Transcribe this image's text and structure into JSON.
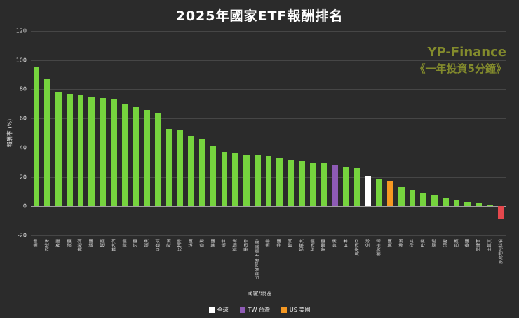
{
  "title": "2025年國家ETF報酬排名",
  "watermark": {
    "line1": "YP-Finance",
    "line2": "《一年投資5分鐘》",
    "color": "#9aa32d"
  },
  "chart_data": {
    "type": "bar",
    "title": "2025年國家ETF報酬排名",
    "xlabel": "國家/地區",
    "ylabel": "報酬率 (%)",
    "ylim": [
      -20,
      120
    ],
    "yticks": [
      120,
      100,
      80,
      60,
      40,
      20,
      0,
      -20
    ],
    "grid": "horizontal",
    "legend_position": "bottom-center",
    "background": "#2b2b2b",
    "default_color": "#76d43e",
    "legend": [
      {
        "label": "全球",
        "color": "#ffffff"
      },
      {
        "label": "TW 台灣",
        "color": "#8e5bb5"
      },
      {
        "label": "US 美國",
        "color": "#f59822"
      }
    ],
    "points": [
      {
        "label": "南韓",
        "value": 95
      },
      {
        "label": "西班牙",
        "value": 87
      },
      {
        "label": "希臘",
        "value": 78
      },
      {
        "label": "波蘭",
        "value": 77
      },
      {
        "label": "奧地利",
        "value": 76
      },
      {
        "label": "德國",
        "value": 75
      },
      {
        "label": "越南",
        "value": 74
      },
      {
        "label": "義大利",
        "value": 73
      },
      {
        "label": "荷蘭",
        "value": 70
      },
      {
        "label": "芬蘭",
        "value": 68
      },
      {
        "label": "瑞典",
        "value": 66
      },
      {
        "label": "以色列",
        "value": 64
      },
      {
        "label": "歐洲",
        "value": 53
      },
      {
        "label": "比利時",
        "value": 52
      },
      {
        "label": "法國",
        "value": 48
      },
      {
        "label": "香港",
        "value": 46
      },
      {
        "label": "英國",
        "value": 41
      },
      {
        "label": "瑞士",
        "value": 37
      },
      {
        "label": "新加坡",
        "value": 36
      },
      {
        "label": "墨西哥",
        "value": 35
      },
      {
        "label": "已開發市場(不含美國)",
        "value": 35
      },
      {
        "label": "南非",
        "value": 34
      },
      {
        "label": "中國",
        "value": 33
      },
      {
        "label": "智利",
        "value": 32
      },
      {
        "label": "加拿大",
        "value": 31
      },
      {
        "label": "紐西蘭",
        "value": 30
      },
      {
        "label": "愛爾蘭",
        "value": 30
      },
      {
        "label": "台灣",
        "value": 28,
        "color": "#8e5bb5"
      },
      {
        "label": "日本",
        "value": 27
      },
      {
        "label": "馬來西亞",
        "value": 26
      },
      {
        "label": "全球",
        "value": 21,
        "color": "#ffffff"
      },
      {
        "label": "新興市場",
        "value": 19
      },
      {
        "label": "美國",
        "value": 17,
        "color": "#f59822"
      },
      {
        "label": "澳洲",
        "value": 13
      },
      {
        "label": "印尼",
        "value": 11
      },
      {
        "label": "丹麥",
        "value": 9
      },
      {
        "label": "挪威",
        "value": 8
      },
      {
        "label": "印度",
        "value": 6
      },
      {
        "label": "巴西",
        "value": 4
      },
      {
        "label": "泰國",
        "value": 3
      },
      {
        "label": "菲律賓",
        "value": 2
      },
      {
        "label": "土耳其",
        "value": 1
      },
      {
        "label": "沙烏地阿拉伯",
        "value": -9,
        "color": "#e5484d"
      }
    ]
  }
}
